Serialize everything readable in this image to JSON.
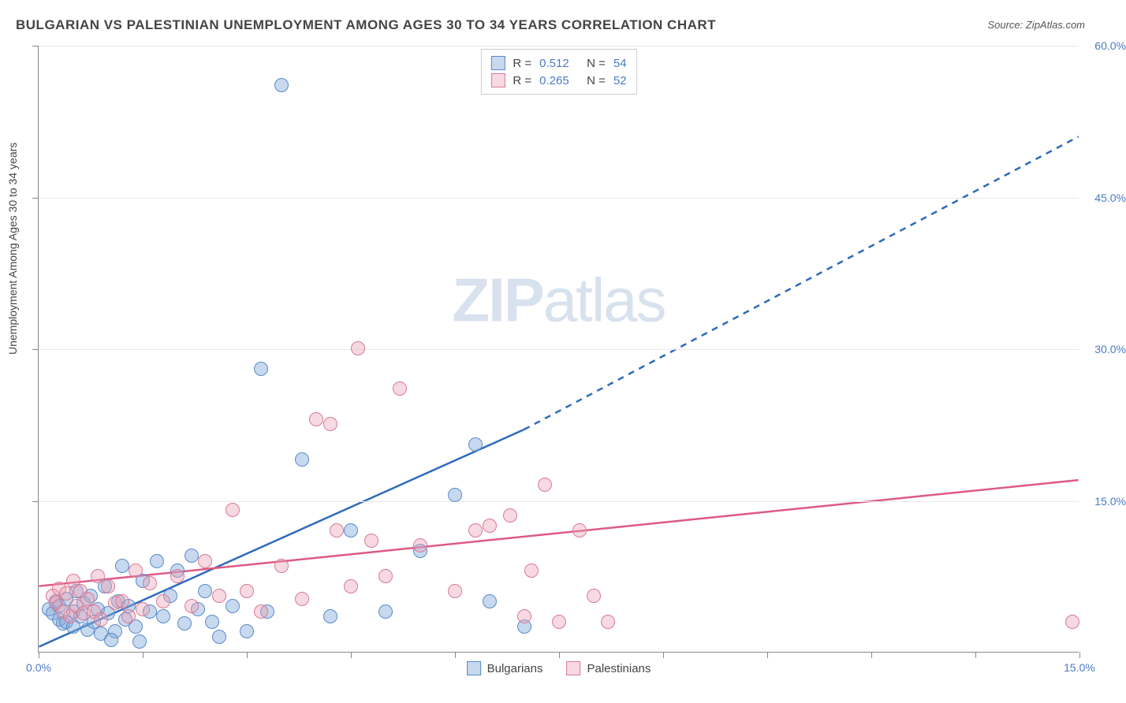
{
  "title": "BULGARIAN VS PALESTINIAN UNEMPLOYMENT AMONG AGES 30 TO 34 YEARS CORRELATION CHART",
  "source_label": "Source: ZipAtlas.com",
  "y_axis_label": "Unemployment Among Ages 30 to 34 years",
  "watermark": {
    "bold": "ZIP",
    "light": "atlas"
  },
  "chart": {
    "type": "scatter",
    "background_color": "#ffffff",
    "grid_color": "#e8e8e8",
    "axis_color": "#888888",
    "tick_label_color": "#4a7bc8",
    "xlim": [
      0,
      15
    ],
    "ylim": [
      0,
      60
    ],
    "x_ticks": [
      0,
      1.5,
      3,
      4.5,
      6,
      7.5,
      9,
      10.5,
      12,
      13.5,
      15
    ],
    "x_tick_labels": {
      "0": "0.0%",
      "15": "15.0%"
    },
    "y_ticks": [
      15,
      30,
      45,
      60
    ],
    "y_tick_labels": {
      "15": "15.0%",
      "30": "30.0%",
      "45": "45.0%",
      "60": "60.0%"
    },
    "point_radius": 9,
    "series": [
      {
        "name": "Bulgarians",
        "fill_color": "rgba(130,170,220,0.45)",
        "stroke_color": "#5a8ac8",
        "r_label": "R =",
        "r_value": "0.512",
        "n_label": "N =",
        "n_value": "54",
        "trend": {
          "solid": {
            "x1": 0,
            "y1": 0.5,
            "x2": 7,
            "y2": 22
          },
          "dashed": {
            "x1": 7,
            "y1": 22,
            "x2": 15,
            "y2": 51
          },
          "color": "#2f6bbd",
          "width": 2.5
        },
        "points": [
          [
            0.15,
            4.2
          ],
          [
            0.2,
            3.8
          ],
          [
            0.25,
            5.0
          ],
          [
            0.3,
            3.2
          ],
          [
            0.3,
            4.5
          ],
          [
            0.35,
            2.8
          ],
          [
            0.4,
            5.2
          ],
          [
            0.4,
            3.0
          ],
          [
            0.5,
            4.0
          ],
          [
            0.5,
            2.5
          ],
          [
            0.55,
            6.0
          ],
          [
            0.6,
            3.5
          ],
          [
            0.65,
            4.8
          ],
          [
            0.7,
            2.2
          ],
          [
            0.75,
            5.5
          ],
          [
            0.8,
            3.0
          ],
          [
            0.85,
            4.2
          ],
          [
            0.9,
            1.8
          ],
          [
            0.95,
            6.5
          ],
          [
            1.0,
            3.8
          ],
          [
            1.1,
            2.0
          ],
          [
            1.15,
            5.0
          ],
          [
            1.2,
            8.5
          ],
          [
            1.25,
            3.2
          ],
          [
            1.3,
            4.5
          ],
          [
            1.4,
            2.5
          ],
          [
            1.5,
            7.0
          ],
          [
            1.6,
            4.0
          ],
          [
            1.7,
            9.0
          ],
          [
            1.8,
            3.5
          ],
          [
            1.9,
            5.5
          ],
          [
            2.0,
            8.0
          ],
          [
            2.1,
            2.8
          ],
          [
            2.2,
            9.5
          ],
          [
            2.3,
            4.2
          ],
          [
            2.4,
            6.0
          ],
          [
            2.5,
            3.0
          ],
          [
            2.6,
            1.5
          ],
          [
            2.8,
            4.5
          ],
          [
            3.0,
            2.0
          ],
          [
            3.2,
            28.0
          ],
          [
            3.3,
            4.0
          ],
          [
            3.5,
            56.0
          ],
          [
            3.8,
            19.0
          ],
          [
            4.2,
            3.5
          ],
          [
            4.5,
            12.0
          ],
          [
            5.0,
            4.0
          ],
          [
            5.5,
            10.0
          ],
          [
            6.0,
            15.5
          ],
          [
            6.3,
            20.5
          ],
          [
            6.5,
            5.0
          ],
          [
            7.0,
            2.5
          ],
          [
            1.05,
            1.2
          ],
          [
            1.45,
            1.0
          ]
        ]
      },
      {
        "name": "Palestinians",
        "fill_color": "rgba(235,160,180,0.40)",
        "stroke_color": "#d87a95",
        "r_label": "R =",
        "r_value": "0.265",
        "n_label": "N =",
        "n_value": "52",
        "trend": {
          "solid": {
            "x1": 0,
            "y1": 6.5,
            "x2": 15,
            "y2": 17
          },
          "color": "#dd5a85",
          "width": 2.5
        },
        "points": [
          [
            0.2,
            5.5
          ],
          [
            0.25,
            4.8
          ],
          [
            0.3,
            6.2
          ],
          [
            0.35,
            4.0
          ],
          [
            0.4,
            5.8
          ],
          [
            0.45,
            3.5
          ],
          [
            0.5,
            7.0
          ],
          [
            0.55,
            4.5
          ],
          [
            0.6,
            6.0
          ],
          [
            0.65,
            3.8
          ],
          [
            0.7,
            5.2
          ],
          [
            0.8,
            4.0
          ],
          [
            0.85,
            7.5
          ],
          [
            0.9,
            3.2
          ],
          [
            1.0,
            6.5
          ],
          [
            1.1,
            4.8
          ],
          [
            1.2,
            5.0
          ],
          [
            1.3,
            3.5
          ],
          [
            1.4,
            8.0
          ],
          [
            1.5,
            4.2
          ],
          [
            1.6,
            6.8
          ],
          [
            1.8,
            5.0
          ],
          [
            2.0,
            7.5
          ],
          [
            2.2,
            4.5
          ],
          [
            2.4,
            9.0
          ],
          [
            2.6,
            5.5
          ],
          [
            2.8,
            14.0
          ],
          [
            3.0,
            6.0
          ],
          [
            3.2,
            4.0
          ],
          [
            3.5,
            8.5
          ],
          [
            3.8,
            5.2
          ],
          [
            4.0,
            23.0
          ],
          [
            4.2,
            22.5
          ],
          [
            4.3,
            12.0
          ],
          [
            4.5,
            6.5
          ],
          [
            4.6,
            30.0
          ],
          [
            4.8,
            11.0
          ],
          [
            5.0,
            7.5
          ],
          [
            5.2,
            26.0
          ],
          [
            5.5,
            10.5
          ],
          [
            6.0,
            6.0
          ],
          [
            6.3,
            12.0
          ],
          [
            6.5,
            12.5
          ],
          [
            6.8,
            13.5
          ],
          [
            7.0,
            3.5
          ],
          [
            7.3,
            16.5
          ],
          [
            7.5,
            3.0
          ],
          [
            7.8,
            12.0
          ],
          [
            8.0,
            5.5
          ],
          [
            8.2,
            3.0
          ],
          [
            14.9,
            3.0
          ],
          [
            7.1,
            8.0
          ]
        ]
      }
    ]
  },
  "legend_bottom": [
    {
      "label": "Bulgarians",
      "fill": "rgba(130,170,220,0.45)",
      "stroke": "#5a8ac8"
    },
    {
      "label": "Palestinians",
      "fill": "rgba(235,160,180,0.40)",
      "stroke": "#d87a95"
    }
  ]
}
